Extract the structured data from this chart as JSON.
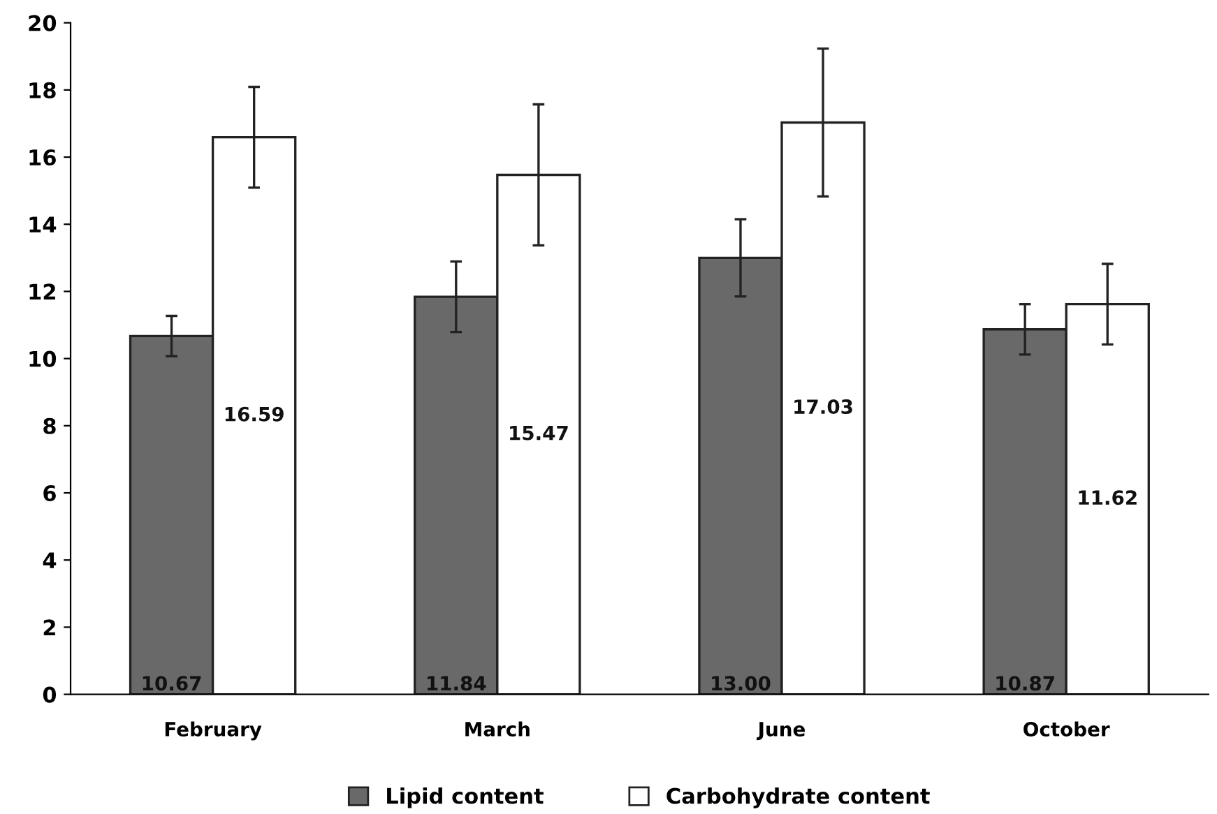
{
  "chart_data": {
    "type": "bar",
    "categories": [
      "February",
      "March",
      "June",
      "October"
    ],
    "series": [
      {
        "name": "Lipid content",
        "color": "#696969",
        "values": [
          10.67,
          11.84,
          13.0,
          10.87
        ],
        "errors": [
          0.6,
          1.05,
          1.15,
          0.75
        ],
        "value_labels": [
          "10.67",
          "11.84",
          "13.00",
          "10.87"
        ]
      },
      {
        "name": "Carbohydrate content",
        "color": "#ffffff",
        "values": [
          16.59,
          15.47,
          17.03,
          11.62
        ],
        "errors": [
          1.5,
          2.1,
          2.2,
          1.2
        ],
        "value_labels": [
          "16.59",
          "15.47",
          "17.03",
          "11.62"
        ]
      }
    ],
    "ylim": [
      0,
      20
    ],
    "yticks": [
      0,
      2,
      4,
      6,
      8,
      10,
      12,
      14,
      16,
      18,
      20
    ],
    "grid": false,
    "legend": "bottom"
  }
}
